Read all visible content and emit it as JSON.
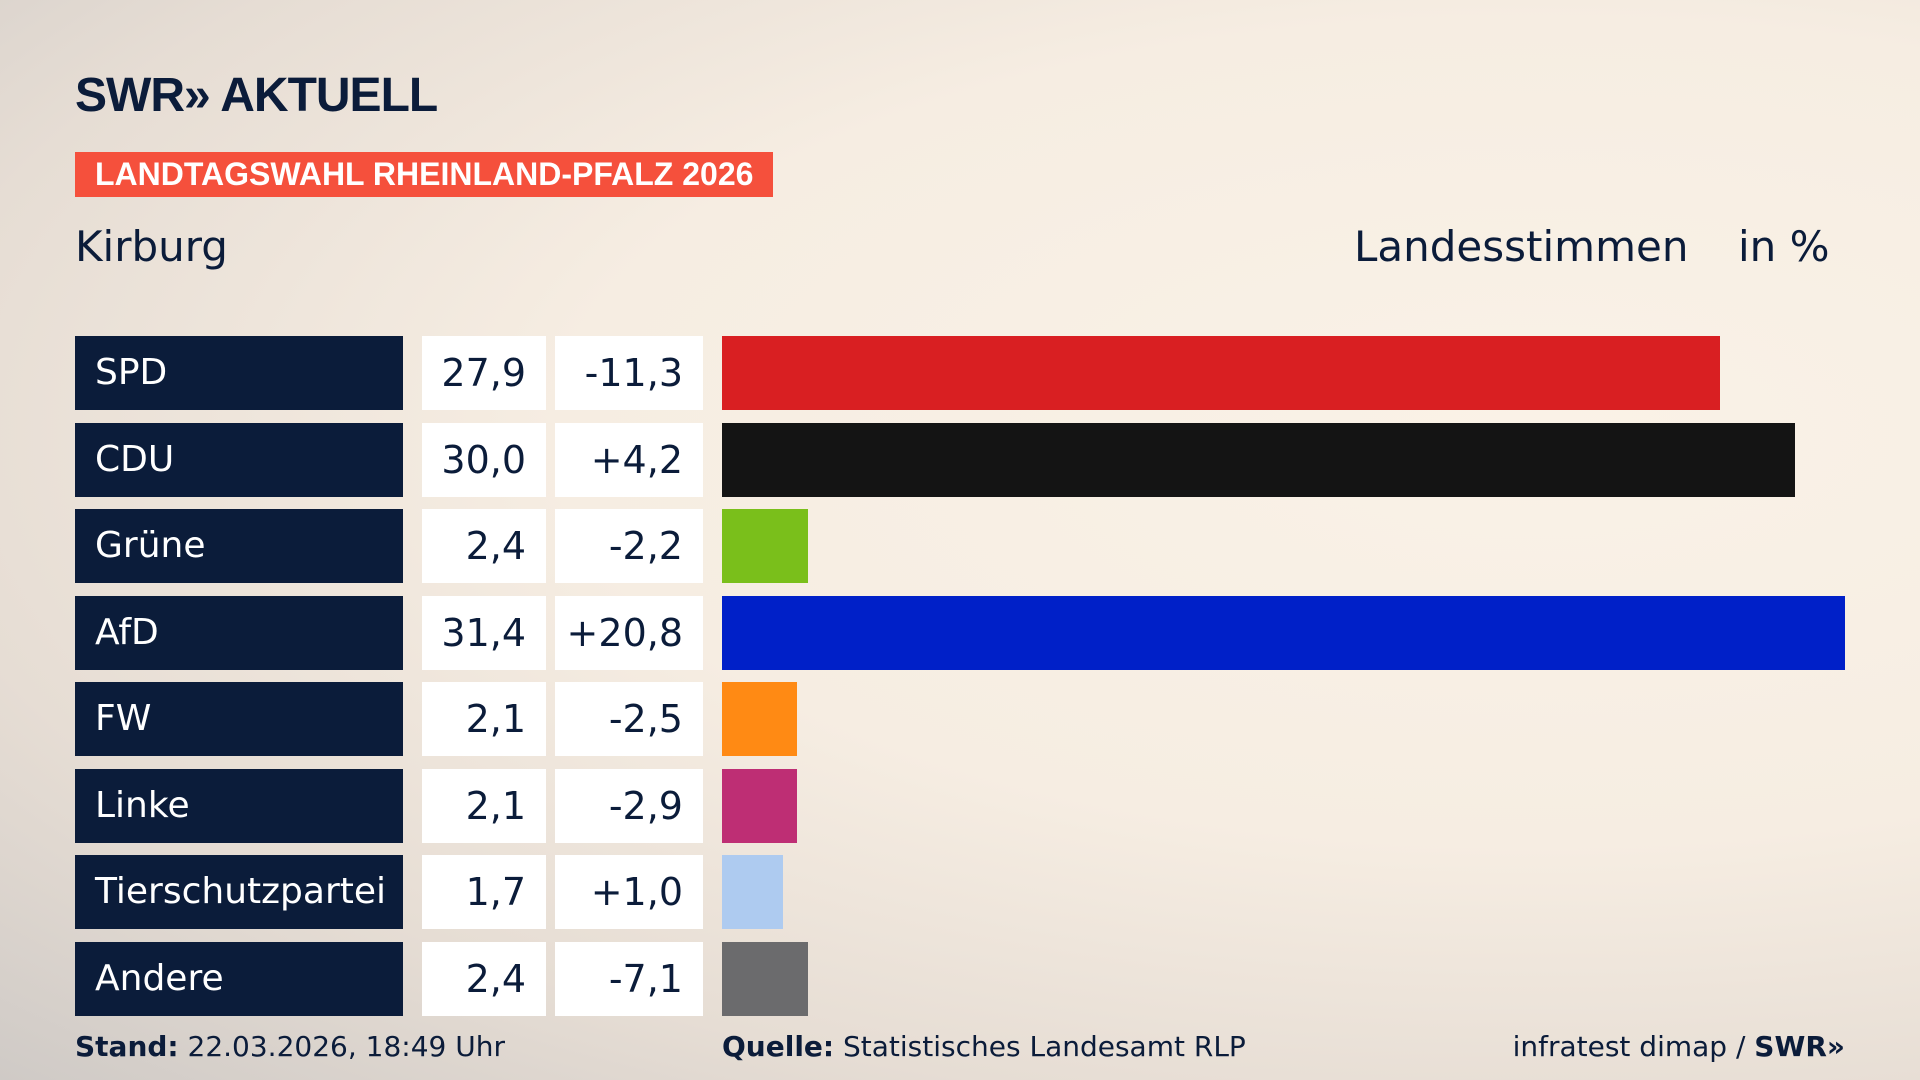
{
  "header": {
    "logo": "SWR» AKTUELL",
    "banner": "LANDTAGSWAHL RHEINLAND-PFALZ 2026",
    "region": "Kirburg",
    "measure": "Landesstimmen",
    "unit": "in %"
  },
  "chart_data": {
    "type": "bar",
    "orientation": "horizontal",
    "categories": [
      "SPD",
      "CDU",
      "Grüne",
      "AfD",
      "FW",
      "Linke",
      "Tierschutzpartei",
      "Andere"
    ],
    "values": [
      27.9,
      30.0,
      2.4,
      31.4,
      2.1,
      2.1,
      1.7,
      2.4
    ],
    "value_labels": [
      "27,9",
      "30,0",
      "2,4",
      "31,4",
      "2,1",
      "2,1",
      "1,7",
      "2,4"
    ],
    "diff_labels": [
      "-11,3",
      "+4,2",
      "-2,2",
      "+20,8",
      "-2,5",
      "-2,9",
      "+1,0",
      "-7,1"
    ],
    "colors": [
      "#d91f22",
      "#141414",
      "#7abf1b",
      "#0020c8",
      "#ff8a14",
      "#be2e74",
      "#aecbf0",
      "#6b6b6d"
    ],
    "xlim": [
      0,
      31.4
    ]
  },
  "footer": {
    "stand_label": "Stand:",
    "stand": " 22.03.2026, 18:49 Uhr",
    "source_label": "Quelle:",
    "source": " Statistisches Landesamt RLP",
    "credit": "infratest dimap / ",
    "credit_logo": "SWR»"
  }
}
